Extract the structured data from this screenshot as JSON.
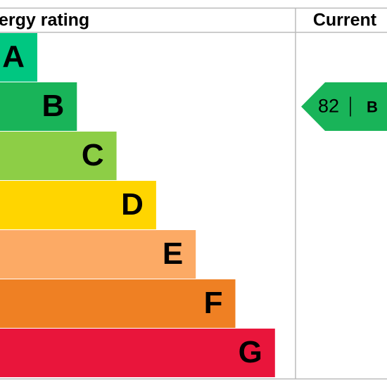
{
  "header": {
    "title": "ergy rating",
    "current": "Current"
  },
  "bands": [
    {
      "letter": "A",
      "color": "#00c781"
    },
    {
      "letter": "B",
      "color": "#19b459"
    },
    {
      "letter": "C",
      "color": "#8dce46"
    },
    {
      "letter": "D",
      "color": "#ffd500"
    },
    {
      "letter": "E",
      "color": "#fcaa65"
    },
    {
      "letter": "F",
      "color": "#ef8023"
    },
    {
      "letter": "G",
      "color": "#e9153b"
    }
  ],
  "current": {
    "score": 82,
    "band": "B",
    "color": "#19b459"
  }
}
